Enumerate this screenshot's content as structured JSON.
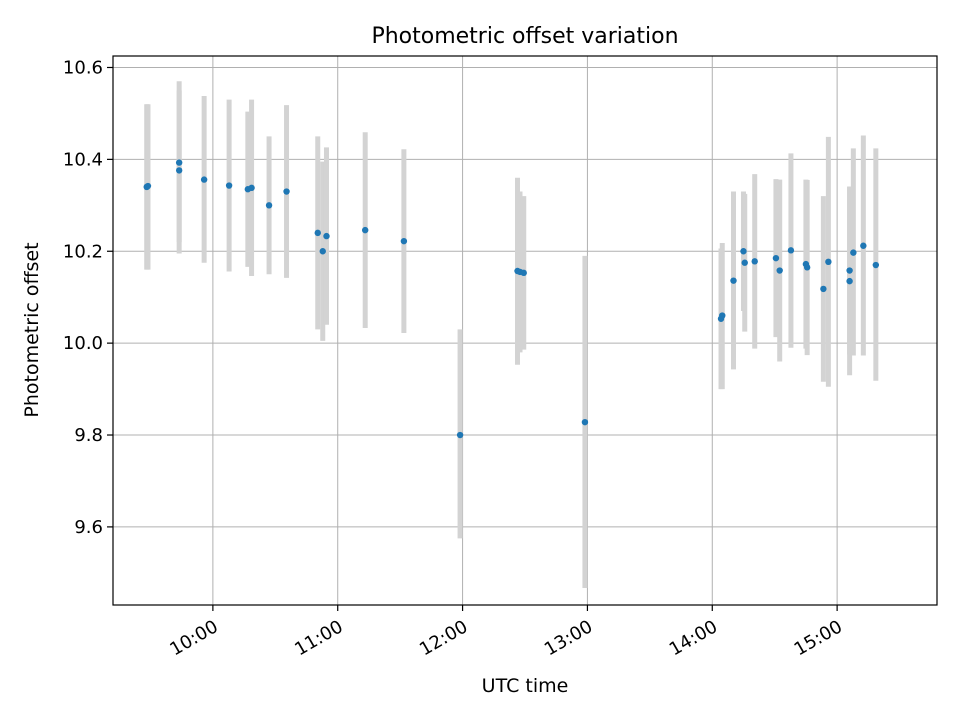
{
  "chart_data": {
    "type": "scatter",
    "title": "Photometric offset variation",
    "xlabel": "UTC time",
    "ylabel": "Photometric offset",
    "x_unit": "UTC hours",
    "xlim": [
      9.2,
      15.8
    ],
    "ylim": [
      9.43,
      10.625
    ],
    "grid": true,
    "x_ticks": [
      {
        "value": 10,
        "label": "10:00"
      },
      {
        "value": 11,
        "label": "11:00"
      },
      {
        "value": 12,
        "label": "12:00"
      },
      {
        "value": 13,
        "label": "13:00"
      },
      {
        "value": 14,
        "label": "14:00"
      },
      {
        "value": 15,
        "label": "15:00"
      }
    ],
    "y_ticks": [
      {
        "value": 9.6,
        "label": "9.6"
      },
      {
        "value": 9.8,
        "label": "9.8"
      },
      {
        "value": 10.0,
        "label": "10.0"
      },
      {
        "value": 10.2,
        "label": "10.2"
      },
      {
        "value": 10.4,
        "label": "10.4"
      },
      {
        "value": 10.6,
        "label": "10.6"
      }
    ],
    "point_color": "#1f77b4",
    "errorbar_color": "#d3d3d3",
    "points": [
      {
        "x": 9.47,
        "y": 10.34,
        "ylow": 10.16,
        "yhigh": 10.52
      },
      {
        "x": 9.48,
        "y": 10.342,
        "ylow": 10.16,
        "yhigh": 10.52
      },
      {
        "x": 9.73,
        "y": 10.393,
        "ylow": 10.22,
        "yhigh": 10.57
      },
      {
        "x": 9.73,
        "y": 10.376,
        "ylow": 10.195,
        "yhigh": 10.55
      },
      {
        "x": 9.93,
        "y": 10.356,
        "ylow": 10.175,
        "yhigh": 10.538
      },
      {
        "x": 10.13,
        "y": 10.343,
        "ylow": 10.156,
        "yhigh": 10.53
      },
      {
        "x": 10.28,
        "y": 10.335,
        "ylow": 10.166,
        "yhigh": 10.504
      },
      {
        "x": 10.31,
        "y": 10.338,
        "ylow": 10.146,
        "yhigh": 10.53
      },
      {
        "x": 10.45,
        "y": 10.3,
        "ylow": 10.15,
        "yhigh": 10.45
      },
      {
        "x": 10.59,
        "y": 10.33,
        "ylow": 10.142,
        "yhigh": 10.518
      },
      {
        "x": 10.84,
        "y": 10.24,
        "ylow": 10.03,
        "yhigh": 10.45
      },
      {
        "x": 10.88,
        "y": 10.2,
        "ylow": 10.005,
        "yhigh": 10.395
      },
      {
        "x": 10.91,
        "y": 10.233,
        "ylow": 10.04,
        "yhigh": 10.426
      },
      {
        "x": 11.22,
        "y": 10.246,
        "ylow": 10.033,
        "yhigh": 10.459
      },
      {
        "x": 11.53,
        "y": 10.222,
        "ylow": 10.022,
        "yhigh": 10.422
      },
      {
        "x": 11.98,
        "y": 9.8,
        "ylow": 9.575,
        "yhigh": 10.03
      },
      {
        "x": 12.44,
        "y": 10.157,
        "ylow": 9.953,
        "yhigh": 10.36
      },
      {
        "x": 12.46,
        "y": 10.155,
        "ylow": 9.98,
        "yhigh": 10.33
      },
      {
        "x": 12.49,
        "y": 10.153,
        "ylow": 9.986,
        "yhigh": 10.32
      },
      {
        "x": 12.98,
        "y": 9.828,
        "ylow": 9.467,
        "yhigh": 10.19
      },
      {
        "x": 14.07,
        "y": 10.053,
        "ylow": 9.9,
        "yhigh": 10.206
      },
      {
        "x": 14.08,
        "y": 10.06,
        "ylow": 9.9,
        "yhigh": 10.218
      },
      {
        "x": 14.17,
        "y": 10.136,
        "ylow": 9.943,
        "yhigh": 10.33
      },
      {
        "x": 14.25,
        "y": 10.2,
        "ylow": 10.07,
        "yhigh": 10.33
      },
      {
        "x": 14.26,
        "y": 10.175,
        "ylow": 10.025,
        "yhigh": 10.325
      },
      {
        "x": 14.34,
        "y": 10.178,
        "ylow": 9.988,
        "yhigh": 10.368
      },
      {
        "x": 14.51,
        "y": 10.185,
        "ylow": 10.013,
        "yhigh": 10.357
      },
      {
        "x": 14.54,
        "y": 10.158,
        "ylow": 9.96,
        "yhigh": 10.356
      },
      {
        "x": 14.63,
        "y": 10.202,
        "ylow": 9.99,
        "yhigh": 10.413
      },
      {
        "x": 14.75,
        "y": 10.172,
        "ylow": 9.988,
        "yhigh": 10.356
      },
      {
        "x": 14.76,
        "y": 10.165,
        "ylow": 9.974,
        "yhigh": 10.355
      },
      {
        "x": 14.89,
        "y": 10.118,
        "ylow": 9.916,
        "yhigh": 10.32
      },
      {
        "x": 14.93,
        "y": 10.177,
        "ylow": 9.905,
        "yhigh": 10.449
      },
      {
        "x": 15.1,
        "y": 10.158,
        "ylow": 9.975,
        "yhigh": 10.341
      },
      {
        "x": 15.1,
        "y": 10.135,
        "ylow": 9.93,
        "yhigh": 10.34
      },
      {
        "x": 15.13,
        "y": 10.197,
        "ylow": 9.973,
        "yhigh": 10.424
      },
      {
        "x": 15.21,
        "y": 10.212,
        "ylow": 9.973,
        "yhigh": 10.452
      },
      {
        "x": 15.31,
        "y": 10.17,
        "ylow": 9.918,
        "yhigh": 10.424
      }
    ]
  }
}
